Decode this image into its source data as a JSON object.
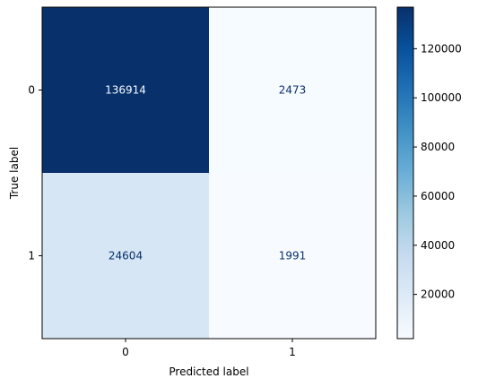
{
  "chart_data": {
    "type": "heatmap",
    "title": "",
    "xlabel": "Predicted label",
    "ylabel": "True label",
    "x_categories": [
      "0",
      "1"
    ],
    "y_categories": [
      "0",
      "1"
    ],
    "values": [
      [
        136914,
        2473
      ],
      [
        24604,
        1991
      ]
    ],
    "colormap": "Blues",
    "colorbar": {
      "min": 1991,
      "max": 136914,
      "ticks": [
        20000,
        40000,
        60000,
        80000,
        100000,
        120000
      ]
    },
    "grid": false,
    "legend": "colorbar-right"
  },
  "colors": {
    "cmap_stops": [
      "#f7fbff",
      "#deebf7",
      "#c6dbef",
      "#9ecae1",
      "#6baed6",
      "#4292c6",
      "#2171b5",
      "#08519c",
      "#08306b"
    ],
    "text_on_dark": "#f7fbff",
    "text_on_light": "#08306b"
  }
}
